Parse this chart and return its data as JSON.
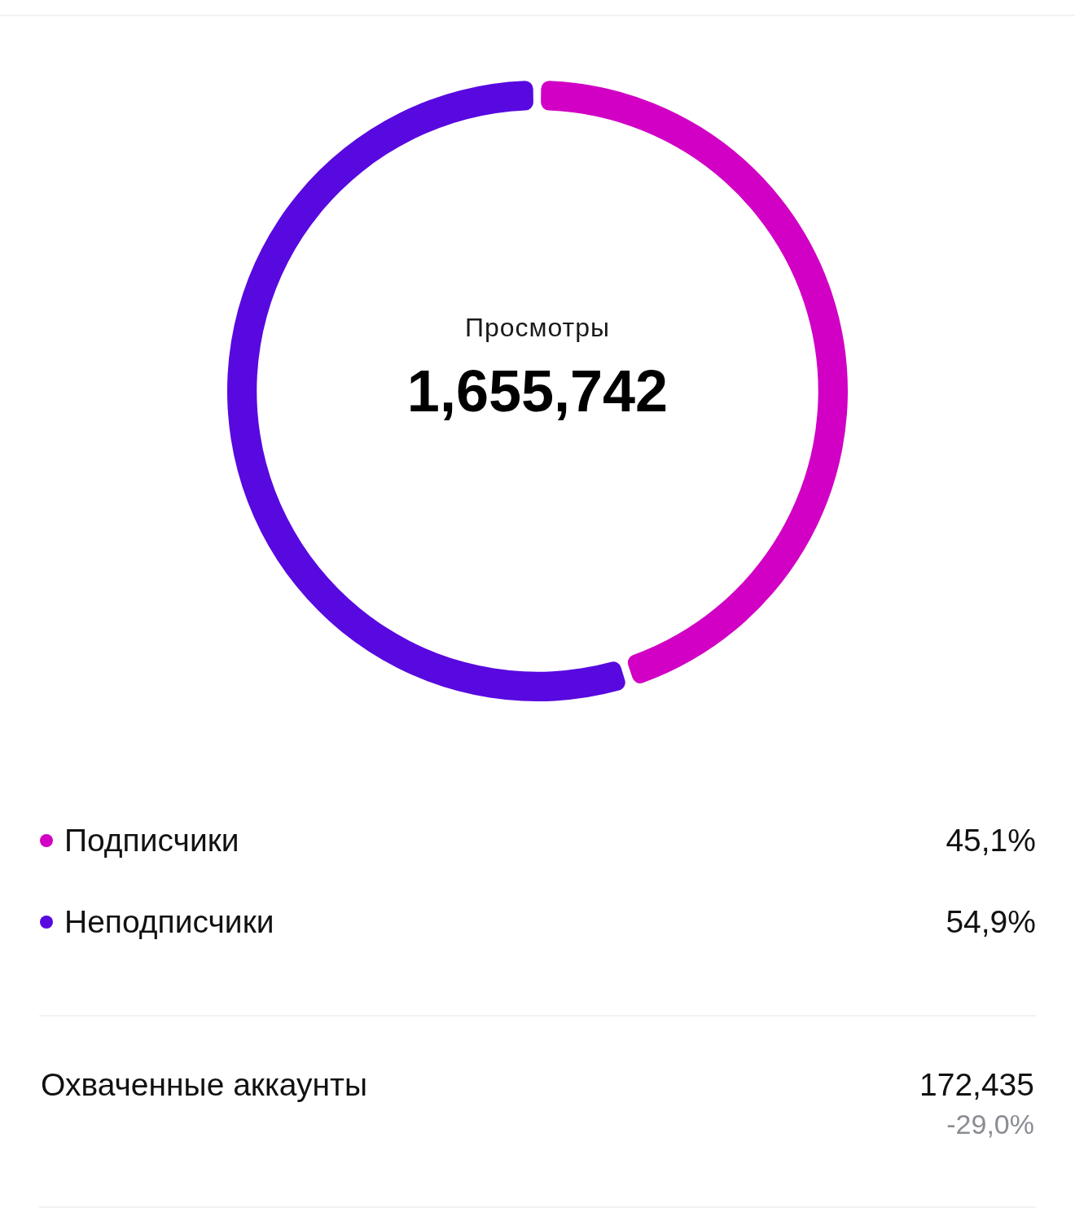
{
  "chart_data": {
    "type": "donut",
    "title": "Просмотры",
    "subtitle": "1,655,742",
    "categories": [
      "Подписчики",
      "Неподписчики"
    ],
    "values": [
      45.1,
      54.9
    ],
    "colors": [
      "#d100c4",
      "#5809e0"
    ],
    "value_labels": [
      "45,1%",
      "54,9%"
    ],
    "legend": "bottom",
    "annotations": [
      "Охваченные аккаунты",
      "172,435",
      "-29,0%"
    ]
  }
}
